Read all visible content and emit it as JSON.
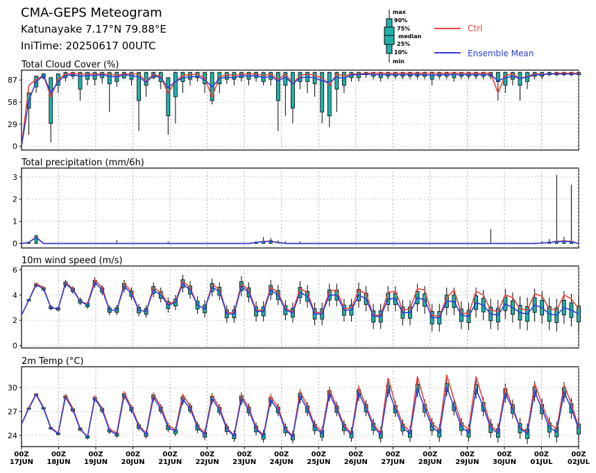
{
  "header": {
    "title": "CMA-GEPS Meteogram",
    "location": "Katunayake 7.17°N 79.88°E",
    "initime": "IniTime: 20250617 00UTC"
  },
  "legend": {
    "box_labels": [
      "max",
      "90%",
      "75%",
      "median",
      "25%",
      "10%",
      "min"
    ],
    "ctrl_label": "Ctrl",
    "mean_label": "Ensemble Mean",
    "ctrl_color": "#e8413c",
    "mean_color": "#2b3fd6",
    "box_color": "#20b2aa"
  },
  "time_axis": {
    "hour_labels": [
      "00Z",
      "00Z",
      "00Z",
      "00Z",
      "00Z",
      "00Z",
      "00Z",
      "00Z",
      "00Z",
      "00Z",
      "00Z",
      "00Z",
      "00Z",
      "00Z",
      "00Z",
      "00Z"
    ],
    "date_labels": [
      "17JUN",
      "18JUN",
      "19JUN",
      "20JUN",
      "21JUN",
      "22JUN",
      "23JUN",
      "24JUN",
      "25JUN",
      "26JUN",
      "27JUN",
      "28JUN",
      "29JUN",
      "30JUN",
      "01JUL",
      "02JUL"
    ],
    "step_hours": 6
  },
  "chart_data": [
    {
      "type": "box",
      "title": "Total Cloud Cover (%)",
      "ylim": [
        -5,
        100
      ],
      "yticks": [
        "0",
        "29",
        "58",
        "87"
      ],
      "ytick_values": [
        0,
        29,
        58,
        87
      ],
      "grid": true,
      "ctrl": [
        0,
        80,
        88,
        93,
        65,
        88,
        95,
        96,
        95,
        95,
        95,
        95,
        95,
        93,
        95,
        95,
        95,
        85,
        95,
        91,
        70,
        85,
        93,
        94,
        95,
        89,
        65,
        91,
        94,
        93,
        95,
        95,
        95,
        93,
        95,
        88,
        95,
        82,
        93,
        95,
        93,
        90,
        80,
        95,
        92,
        95,
        95,
        96,
        96,
        96,
        96,
        96,
        96,
        96,
        96,
        96,
        96,
        96,
        96,
        96,
        96,
        96,
        96,
        96,
        96,
        70,
        93,
        95,
        89,
        92,
        95,
        95,
        95,
        96,
        96,
        96,
        96
      ],
      "mean": [
        0,
        60,
        85,
        93,
        70,
        85,
        93,
        94,
        92,
        93,
        93,
        94,
        92,
        91,
        94,
        93,
        91,
        84,
        93,
        90,
        77,
        85,
        90,
        91,
        92,
        87,
        78,
        89,
        91,
        90,
        93,
        92,
        93,
        90,
        92,
        86,
        91,
        82,
        90,
        91,
        90,
        86,
        84,
        91,
        89,
        94,
        94,
        95,
        94,
        94,
        94,
        94,
        94,
        94,
        94,
        94,
        93,
        94,
        94,
        94,
        94,
        94,
        94,
        94,
        94,
        86,
        90,
        92,
        89,
        91,
        94,
        94,
        95,
        95,
        95,
        95,
        95
      ],
      "box_q1": [
        null,
        50,
        78,
        90,
        30,
        80,
        90,
        92,
        75,
        88,
        88,
        90,
        82,
        85,
        90,
        88,
        60,
        80,
        90,
        85,
        40,
        65,
        85,
        88,
        90,
        82,
        60,
        82,
        88,
        88,
        90,
        88,
        90,
        85,
        88,
        60,
        80,
        50,
        85,
        85,
        82,
        45,
        40,
        75,
        80,
        90,
        90,
        94,
        92,
        90,
        92,
        92,
        92,
        92,
        92,
        92,
        88,
        92,
        92,
        90,
        92,
        92,
        92,
        92,
        92,
        85,
        80,
        88,
        80,
        85,
        92,
        92,
        94,
        94,
        94,
        94,
        94
      ],
      "box_q3": [
        null,
        70,
        92,
        95,
        90,
        95,
        97,
        97,
        97,
        97,
        97,
        97,
        97,
        97,
        97,
        97,
        97,
        97,
        97,
        97,
        90,
        97,
        97,
        97,
        97,
        97,
        97,
        97,
        97,
        97,
        97,
        97,
        97,
        97,
        97,
        97,
        97,
        97,
        97,
        97,
        97,
        97,
        97,
        97,
        97,
        97,
        97,
        97,
        97,
        97,
        97,
        97,
        97,
        97,
        97,
        97,
        97,
        97,
        97,
        97,
        97,
        97,
        97,
        97,
        97,
        97,
        97,
        97,
        97,
        97,
        97,
        97,
        97,
        97,
        97,
        97,
        97
      ],
      "box_min": [
        null,
        15,
        70,
        88,
        5,
        70,
        85,
        88,
        60,
        80,
        80,
        82,
        45,
        78,
        88,
        80,
        20,
        65,
        88,
        75,
        15,
        30,
        70,
        80,
        85,
        70,
        55,
        70,
        82,
        80,
        85,
        80,
        85,
        80,
        80,
        20,
        40,
        30,
        75,
        70,
        65,
        30,
        25,
        45,
        70,
        85,
        85,
        90,
        88,
        85,
        88,
        88,
        88,
        88,
        88,
        88,
        80,
        88,
        88,
        85,
        88,
        88,
        88,
        88,
        88,
        60,
        70,
        80,
        60,
        75,
        88,
        88,
        92,
        92,
        92,
        92,
        92
      ]
    },
    {
      "type": "box",
      "title": "Total precipitation (mm/6h)",
      "ylim": [
        -0.2,
        3.4
      ],
      "yticks": [
        "0",
        "1",
        "2",
        "3"
      ],
      "ytick_values": [
        0,
        1,
        2,
        3
      ],
      "grid": true,
      "ctrl": [
        0,
        0.05,
        0.3,
        0,
        0,
        0,
        0,
        0,
        0,
        0,
        0,
        0,
        0,
        0,
        0,
        0,
        0,
        0,
        0,
        0,
        0,
        0,
        0,
        0,
        0,
        0,
        0,
        0,
        0,
        0,
        0,
        0,
        0.05,
        0.1,
        0.1,
        0.05,
        0,
        0,
        0,
        0,
        0,
        0,
        0,
        0,
        0,
        0,
        0,
        0,
        0,
        0,
        0,
        0,
        0,
        0,
        0,
        0,
        0,
        0,
        0,
        0,
        0,
        0,
        0,
        0,
        0,
        0,
        0,
        0,
        0,
        0,
        0,
        0.02,
        0.05,
        0.1,
        0.12,
        0.1,
        0
      ],
      "mean": [
        0,
        0.05,
        0.28,
        0,
        0,
        0,
        0,
        0,
        0,
        0,
        0,
        0,
        0,
        0,
        0,
        0,
        0,
        0,
        0,
        0,
        0,
        0,
        0,
        0,
        0,
        0,
        0,
        0,
        0,
        0,
        0,
        0,
        0.05,
        0.08,
        0.1,
        0.04,
        0,
        0,
        0,
        0,
        0,
        0,
        0,
        0,
        0,
        0,
        0,
        0,
        0,
        0,
        0,
        0,
        0,
        0,
        0,
        0,
        0,
        0,
        0,
        0,
        0,
        0,
        0,
        0,
        0,
        0,
        0,
        0,
        0,
        0,
        0,
        0.02,
        0.05,
        0.08,
        0.1,
        0.08,
        0
      ],
      "spikes": [
        0,
        0,
        0.3,
        0,
        0,
        0,
        0,
        0,
        0,
        0,
        0,
        0,
        0,
        0.15,
        0,
        0,
        0,
        0,
        0,
        0,
        0.1,
        0,
        0,
        0,
        0,
        0,
        0,
        0,
        0,
        0,
        0,
        0,
        0.1,
        0.3,
        0.25,
        0.15,
        0.1,
        0,
        0.1,
        0,
        0,
        0,
        0,
        0,
        0,
        0,
        0,
        0,
        0,
        0,
        0,
        0,
        0,
        0,
        0,
        0,
        0,
        0,
        0,
        0,
        0,
        0,
        0,
        0,
        0.65,
        0,
        0,
        0,
        0,
        0,
        0.05,
        0.1,
        0.2,
        3.1,
        0.3,
        2.65,
        0
      ]
    },
    {
      "type": "box",
      "title": "10m wind speed (m/s)",
      "ylim": [
        -0.2,
        6.3
      ],
      "yticks": [
        "0",
        "2",
        "4",
        "6"
      ],
      "ytick_values": [
        0,
        2,
        4,
        6
      ],
      "grid": true,
      "ctrl": [
        2.4,
        3.6,
        4.9,
        4.6,
        3.0,
        2.9,
        5.0,
        4.5,
        3.5,
        3.3,
        5.2,
        4.6,
        2.8,
        2.8,
        4.9,
        4.3,
        2.8,
        2.7,
        4.6,
        4.2,
        3.3,
        3.5,
        5.1,
        4.6,
        3.2,
        2.9,
        4.8,
        4.5,
        2.6,
        2.6,
        4.9,
        4.4,
        2.8,
        2.8,
        4.6,
        4.2,
        2.9,
        2.7,
        4.5,
        4.2,
        2.6,
        2.6,
        4.3,
        4.4,
        2.9,
        3.0,
        4.4,
        4.1,
        2.4,
        2.4,
        4.2,
        4.3,
        2.8,
        2.9,
        4.5,
        4.4,
        2.4,
        2.3,
        3.8,
        4.4,
        2.6,
        2.5,
        4.3,
        4.0,
        2.8,
        2.7,
        4.0,
        3.8,
        2.9,
        2.8,
        4.1,
        3.9,
        2.9,
        2.8,
        4.0,
        3.7,
        2.9
      ],
      "mean": [
        2.4,
        3.6,
        4.8,
        4.5,
        3.0,
        2.9,
        4.9,
        4.4,
        3.5,
        3.2,
        5.0,
        4.4,
        2.8,
        2.8,
        4.7,
        4.1,
        2.8,
        2.7,
        4.4,
        4.0,
        3.2,
        3.4,
        4.9,
        4.4,
        3.2,
        2.9,
        4.6,
        4.3,
        2.5,
        2.5,
        4.7,
        4.2,
        2.7,
        2.7,
        4.4,
        4.0,
        2.8,
        2.6,
        4.2,
        3.9,
        2.5,
        2.5,
        4.0,
        4.0,
        2.8,
        2.8,
        4.0,
        3.7,
        2.3,
        2.3,
        3.7,
        3.7,
        2.6,
        2.6,
        3.8,
        3.6,
        2.2,
        2.2,
        3.5,
        3.5,
        2.4,
        2.3,
        3.4,
        3.2,
        2.5,
        2.4,
        3.3,
        3.0,
        2.6,
        2.5,
        3.2,
        3.0,
        2.5,
        2.4,
        3.0,
        2.8,
        2.5
      ],
      "spread": [
        0,
        0.1,
        0.2,
        0.2,
        0.2,
        0.2,
        0.3,
        0.3,
        0.3,
        0.3,
        0.4,
        0.4,
        0.4,
        0.4,
        0.5,
        0.5,
        0.5,
        0.5,
        0.6,
        0.6,
        0.6,
        0.6,
        0.7,
        0.7,
        0.7,
        0.7,
        0.7,
        0.7,
        0.7,
        0.7,
        0.8,
        0.8,
        0.8,
        0.8,
        0.8,
        0.8,
        0.8,
        0.8,
        0.9,
        0.9,
        0.9,
        0.9,
        0.9,
        0.9,
        0.9,
        0.9,
        1.0,
        1.0,
        1.0,
        1.0,
        1.0,
        1.0,
        1.0,
        1.0,
        1.1,
        1.1,
        1.1,
        1.1,
        1.1,
        1.1,
        1.1,
        1.1,
        1.2,
        1.2,
        1.2,
        1.2,
        1.2,
        1.2,
        1.3,
        1.3,
        1.3,
        1.3,
        1.3,
        1.3,
        1.3,
        1.3,
        1.4
      ]
    },
    {
      "type": "box",
      "title": "2m Temp (°C)",
      "ylim": [
        22.6,
        32.6
      ],
      "yticks": [
        "24",
        "27",
        "30"
      ],
      "ytick_values": [
        24,
        27,
        30
      ],
      "grid": true,
      "ctrl": [
        25.4,
        27.5,
        29.2,
        27.5,
        25.0,
        24.3,
        29.1,
        27.4,
        24.9,
        23.8,
        28.8,
        27.4,
        24.8,
        24.3,
        29.4,
        27.5,
        25.3,
        24.3,
        29.2,
        27.6,
        25.3,
        24.7,
        29.1,
        27.7,
        25.2,
        24.3,
        29.0,
        27.5,
        25.0,
        24.0,
        29.0,
        27.5,
        25.0,
        24.0,
        28.9,
        27.5,
        24.9,
        23.9,
        29.5,
        27.7,
        25.3,
        24.5,
        29.8,
        27.6,
        25.3,
        24.3,
        30.0,
        27.7,
        25.4,
        24.3,
        31.2,
        27.9,
        25.4,
        24.5,
        31.4,
        28.1,
        25.5,
        24.7,
        31.6,
        28.5,
        25.5,
        24.7,
        31.4,
        28.3,
        25.2,
        24.5,
        30.0,
        27.5,
        25.0,
        24.4,
        30.5,
        27.9,
        25.5,
        24.8,
        30.3,
        28.0,
        25.0
      ],
      "mean": [
        25.4,
        27.4,
        29.1,
        27.4,
        24.9,
        24.2,
        28.8,
        27.2,
        24.8,
        23.8,
        28.6,
        27.2,
        24.6,
        24.1,
        29.0,
        27.3,
        25.1,
        24.1,
        28.8,
        27.3,
        25.0,
        24.5,
        28.5,
        27.4,
        25.0,
        24.1,
        28.6,
        27.2,
        24.8,
        23.9,
        28.6,
        27.2,
        24.8,
        23.9,
        28.4,
        27.2,
        24.7,
        23.8,
        28.9,
        27.3,
        25.0,
        24.2,
        29.2,
        27.3,
        25.0,
        24.1,
        29.3,
        27.4,
        25.1,
        24.1,
        29.8,
        27.3,
        25.0,
        24.2,
        29.9,
        27.4,
        25.1,
        24.3,
        30.0,
        27.6,
        25.1,
        24.3,
        29.8,
        27.6,
        24.9,
        24.3,
        29.3,
        27.3,
        24.9,
        24.2,
        29.5,
        27.3,
        25.0,
        24.4,
        29.4,
        27.4,
        24.8
      ],
      "spread": [
        0,
        0.1,
        0.2,
        0.2,
        0.2,
        0.2,
        0.3,
        0.3,
        0.3,
        0.3,
        0.4,
        0.4,
        0.4,
        0.4,
        0.5,
        0.5,
        0.5,
        0.5,
        0.6,
        0.6,
        0.6,
        0.6,
        0.7,
        0.7,
        0.7,
        0.7,
        0.7,
        0.7,
        0.7,
        0.7,
        0.8,
        0.8,
        0.8,
        0.8,
        0.8,
        0.8,
        0.8,
        0.8,
        0.9,
        0.9,
        0.9,
        0.9,
        0.9,
        0.9,
        0.9,
        0.9,
        1.0,
        1.0,
        1.0,
        1.0,
        1.0,
        1.0,
        1.0,
        1.0,
        1.1,
        1.1,
        1.1,
        1.1,
        1.1,
        1.1,
        1.1,
        1.1,
        1.2,
        1.2,
        1.2,
        1.2,
        1.2,
        1.2,
        1.3,
        1.3,
        1.3,
        1.3,
        1.3,
        1.3,
        1.3,
        1.3,
        1.4
      ]
    }
  ]
}
